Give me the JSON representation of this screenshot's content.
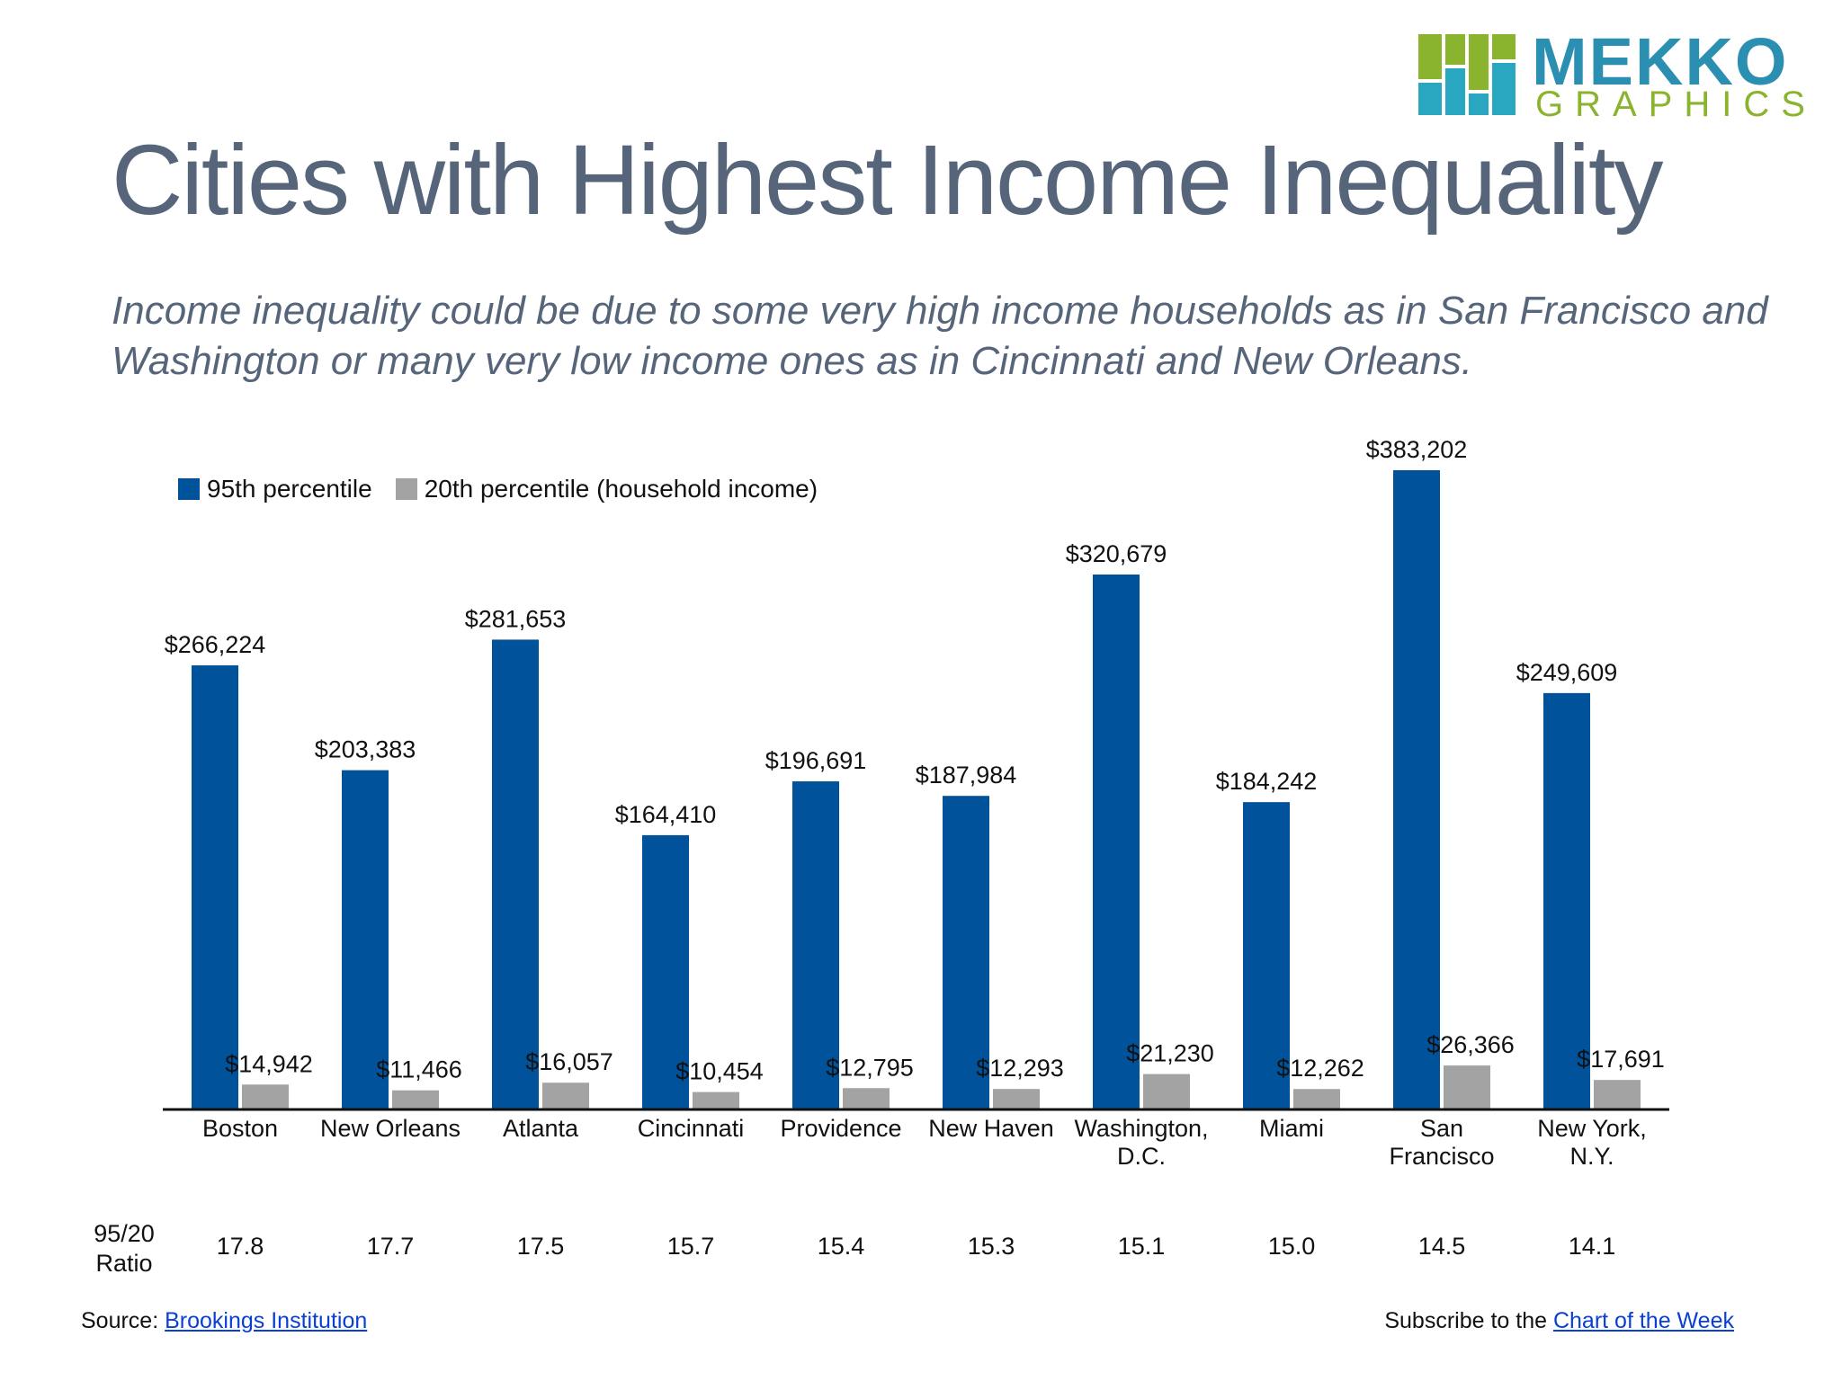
{
  "brand": {
    "name_line1": "MEKKO",
    "name_line2": "GRAPHICS",
    "colors": {
      "teal": "#2a8fb0",
      "green": "#8bb42e"
    }
  },
  "title": "Cities with Highest Income Inequality",
  "subtitle": "Income inequality could be due to some very high income households as in San Francisco and Washington or many very low income ones as in Cincinnati and New Orleans.",
  "ratio_label": [
    "95/20",
    "Ratio"
  ],
  "footer": {
    "source_prefix": "Source:",
    "source_link": "Brookings Institution",
    "subscribe_prefix": "Subscribe to the",
    "subscribe_link": "Chart of the Week"
  },
  "chart_data": {
    "type": "bar",
    "categories": [
      [
        "Boston"
      ],
      [
        "New Orleans"
      ],
      [
        "Atlanta"
      ],
      [
        "Cincinnati"
      ],
      [
        "Providence"
      ],
      [
        "New Haven"
      ],
      [
        "Washington,",
        "D.C."
      ],
      [
        "Miami"
      ],
      [
        "San",
        "Francisco"
      ],
      [
        "New York,",
        "N.Y."
      ]
    ],
    "series": [
      {
        "name": "95th percentile",
        "color": "#00539b",
        "values": [
          266224,
          203383,
          281653,
          164410,
          196691,
          187984,
          320679,
          184242,
          383202,
          249609
        ],
        "labels": [
          "$266,224",
          "$203,383",
          "$281,653",
          "$164,410",
          "$196,691",
          "$187,984",
          "$320,679",
          "$184,242",
          "$383,202",
          "$249,609"
        ]
      },
      {
        "name": "20th percentile (household income)",
        "color": "#a3a3a3",
        "values": [
          14942,
          11466,
          16057,
          10454,
          12795,
          12293,
          21230,
          12262,
          26366,
          17691
        ],
        "labels": [
          "$14,942",
          "$11,466",
          "$16,057",
          "$10,454",
          "$12,795",
          "$12,293",
          "$21,230",
          "$12,262",
          "$26,366",
          "$17,691"
        ]
      }
    ],
    "ratios": [
      "17.8",
      "17.7",
      "17.5",
      "15.7",
      "15.4",
      "15.3",
      "15.1",
      "15.0",
      "14.5",
      "14.1"
    ],
    "ylim": [
      0,
      383202
    ],
    "grid": false,
    "legend_position": "top-left"
  }
}
